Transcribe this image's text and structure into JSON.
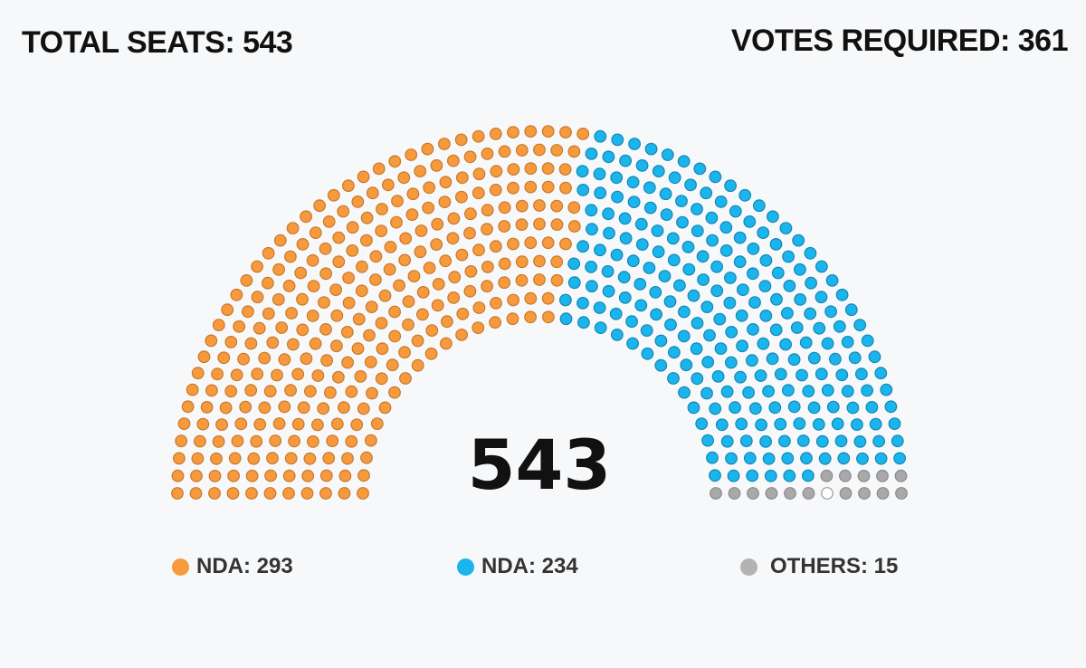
{
  "header": {
    "total_seats": "TOTAL SEATS: 543",
    "votes_required": "VOTES REQUIRED: 361"
  },
  "center_total": "543",
  "legend": [
    {
      "label": "NDA: 293",
      "color": "#f79a3e"
    },
    {
      "label": "NDA: 234",
      "color": "#1ab5ec"
    },
    {
      "label": "OTHERS: 15",
      "color": "#b3b3b3"
    }
  ],
  "chart_data": {
    "type": "parliament",
    "total": 543,
    "series": [
      {
        "name": "NDA",
        "value": 293,
        "color": "#f79a3e",
        "stroke": "#c9782a"
      },
      {
        "name": "NDA",
        "value": 234,
        "color": "#1ab5ec",
        "stroke": "#1686b3"
      },
      {
        "name": "OTHERS",
        "value": 15,
        "color": "#a9a9a9",
        "stroke": "#8a8a8a"
      }
    ],
    "vacant_color": "#ffffff"
  }
}
